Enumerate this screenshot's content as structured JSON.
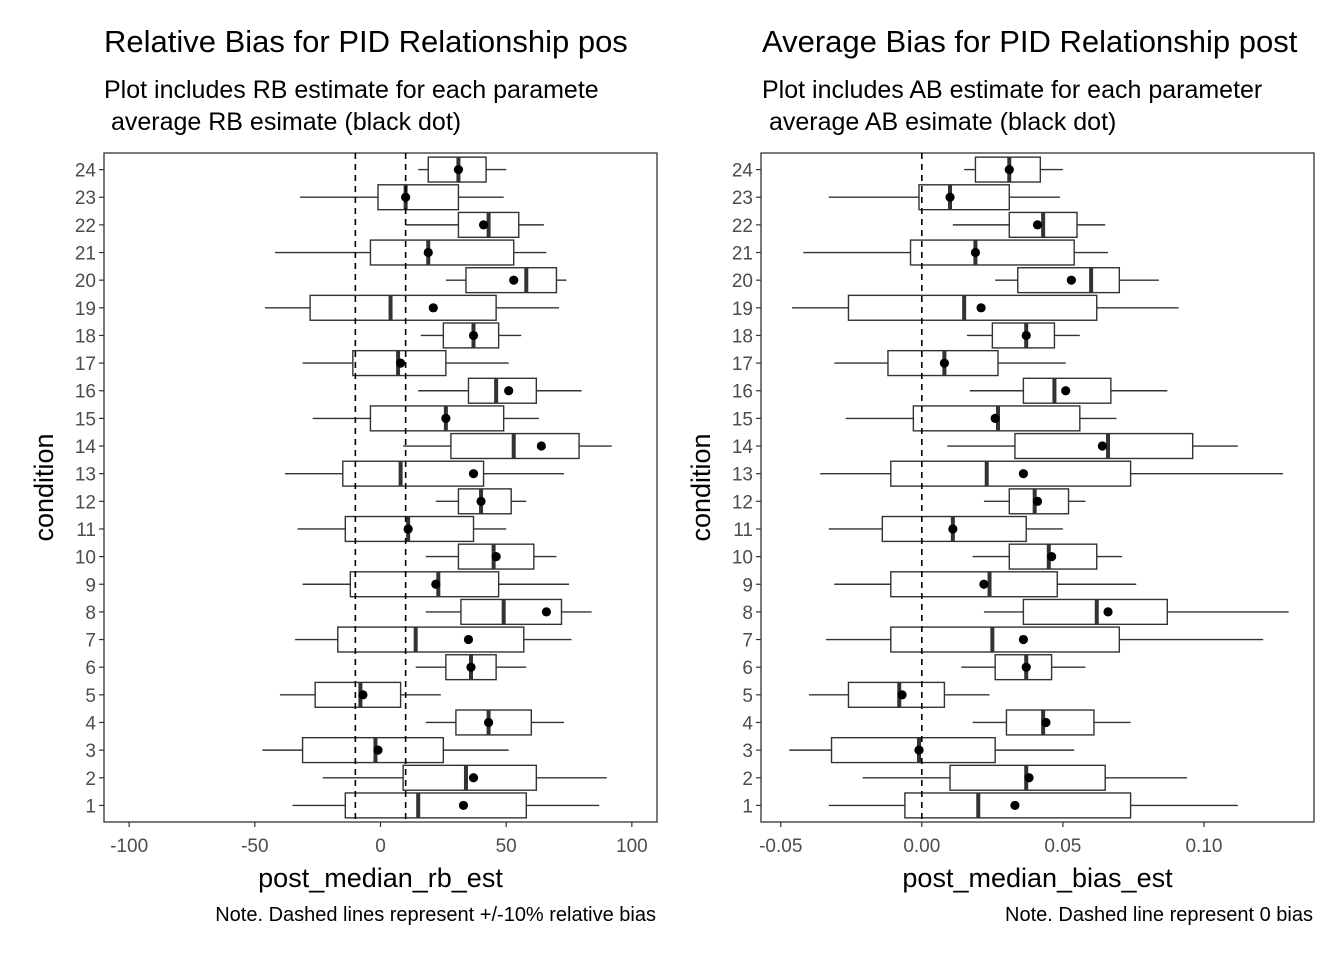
{
  "chart_data": [
    {
      "type": "boxplot",
      "title": "Relative Bias for PID Relationship pos",
      "subtitle": "Plot includes RB estimate for each paramete\n average RB esimate (black dot)",
      "xlabel": "post_median_rb_est",
      "ylabel": "condition",
      "caption": "Note. Dashed lines represent +/-10% relative bias",
      "xlim": [
        -110,
        110
      ],
      "xticks": [
        -100,
        -50,
        0,
        50,
        100
      ],
      "xtick_labels": [
        "-100",
        "-50",
        "0",
        "50",
        "100"
      ],
      "reference_lines": [
        -10,
        10
      ],
      "categories": [
        "1",
        "2",
        "3",
        "4",
        "5",
        "6",
        "7",
        "8",
        "9",
        "10",
        "11",
        "12",
        "13",
        "14",
        "15",
        "16",
        "17",
        "18",
        "19",
        "20",
        "21",
        "22",
        "23",
        "24"
      ],
      "boxes": [
        {
          "condition": "1",
          "whisker_low": -35,
          "q1": -14,
          "median": 15,
          "q3": 58,
          "whisker_high": 87,
          "mean": 33
        },
        {
          "condition": "2",
          "whisker_low": -23,
          "q1": 9,
          "median": 34,
          "q3": 62,
          "whisker_high": 90,
          "mean": 37
        },
        {
          "condition": "3",
          "whisker_low": -47,
          "q1": -31,
          "median": -2,
          "q3": 25,
          "whisker_high": 51,
          "mean": -1
        },
        {
          "condition": "4",
          "whisker_low": 18,
          "q1": 30,
          "median": 43,
          "q3": 60,
          "whisker_high": 73,
          "mean": 43
        },
        {
          "condition": "5",
          "whisker_low": -40,
          "q1": -26,
          "median": -8,
          "q3": 8,
          "whisker_high": 24,
          "mean": -7
        },
        {
          "condition": "6",
          "whisker_low": 14,
          "q1": 26,
          "median": 36,
          "q3": 46,
          "whisker_high": 58,
          "mean": 36
        },
        {
          "condition": "7",
          "whisker_low": -34,
          "q1": -17,
          "median": 14,
          "q3": 57,
          "whisker_high": 76,
          "mean": 35
        },
        {
          "condition": "8",
          "whisker_low": 18,
          "q1": 32,
          "median": 49,
          "q3": 72,
          "whisker_high": 84,
          "mean": 66
        },
        {
          "condition": "9",
          "whisker_low": -31,
          "q1": -12,
          "median": 23,
          "q3": 47,
          "whisker_high": 75,
          "mean": 22
        },
        {
          "condition": "10",
          "whisker_low": 18,
          "q1": 31,
          "median": 45,
          "q3": 61,
          "whisker_high": 70,
          "mean": 46
        },
        {
          "condition": "11",
          "whisker_low": -33,
          "q1": -14,
          "median": 11,
          "q3": 37,
          "whisker_high": 50,
          "mean": 11
        },
        {
          "condition": "12",
          "whisker_low": 22,
          "q1": 31,
          "median": 40,
          "q3": 52,
          "whisker_high": 58,
          "mean": 40
        },
        {
          "condition": "13",
          "whisker_low": -38,
          "q1": -15,
          "median": 8,
          "q3": 41,
          "whisker_high": 73,
          "mean": 37
        },
        {
          "condition": "14",
          "whisker_low": 9,
          "q1": 28,
          "median": 53,
          "q3": 79,
          "whisker_high": 92,
          "mean": 64
        },
        {
          "condition": "15",
          "whisker_low": -27,
          "q1": -4,
          "median": 26,
          "q3": 49,
          "whisker_high": 63,
          "mean": 26
        },
        {
          "condition": "16",
          "whisker_low": 15,
          "q1": 35,
          "median": 46,
          "q3": 62,
          "whisker_high": 80,
          "mean": 51
        },
        {
          "condition": "17",
          "whisker_low": -31,
          "q1": -11,
          "median": 7,
          "q3": 26,
          "whisker_high": 51,
          "mean": 8
        },
        {
          "condition": "18",
          "whisker_low": 16,
          "q1": 25,
          "median": 37,
          "q3": 47,
          "whisker_high": 56,
          "mean": 37
        },
        {
          "condition": "19",
          "whisker_low": -46,
          "q1": -28,
          "median": 4,
          "q3": 46,
          "whisker_high": 71,
          "mean": 21
        },
        {
          "condition": "20",
          "whisker_low": 26,
          "q1": 34,
          "median": 58,
          "q3": 70,
          "whisker_high": 74,
          "mean": 53
        },
        {
          "condition": "21",
          "whisker_low": -42,
          "q1": -4,
          "median": 19,
          "q3": 53,
          "whisker_high": 66,
          "mean": 19
        },
        {
          "condition": "22",
          "whisker_low": 10,
          "q1": 31,
          "median": 43,
          "q3": 55,
          "whisker_high": 65,
          "mean": 41
        },
        {
          "condition": "23",
          "whisker_low": -32,
          "q1": -1,
          "median": 10,
          "q3": 31,
          "whisker_high": 49,
          "mean": 10
        },
        {
          "condition": "24",
          "whisker_low": 15,
          "q1": 19,
          "median": 31,
          "q3": 42,
          "whisker_high": 50,
          "mean": 31
        }
      ]
    },
    {
      "type": "boxplot",
      "title": "Average Bias for PID Relationship post",
      "subtitle": "Plot includes AB estimate for each parameter\n average AB esimate (black dot)",
      "xlabel": "post_median_bias_est",
      "ylabel": "condition",
      "caption": "Note. Dashed line represent 0 bias",
      "xlim": [
        -0.057,
        0.139
      ],
      "xticks": [
        -0.05,
        0.0,
        0.05,
        0.1
      ],
      "xtick_labels": [
        "-0.05",
        "0.00",
        "0.05",
        "0.10"
      ],
      "reference_lines": [
        0
      ],
      "categories": [
        "1",
        "2",
        "3",
        "4",
        "5",
        "6",
        "7",
        "8",
        "9",
        "10",
        "11",
        "12",
        "13",
        "14",
        "15",
        "16",
        "17",
        "18",
        "19",
        "20",
        "21",
        "22",
        "23",
        "24"
      ],
      "boxes": [
        {
          "condition": "1",
          "whisker_low": -0.033,
          "q1": -0.006,
          "median": 0.02,
          "q3": 0.074,
          "whisker_high": 0.112,
          "mean": 0.033
        },
        {
          "condition": "2",
          "whisker_low": -0.021,
          "q1": 0.01,
          "median": 0.037,
          "q3": 0.065,
          "whisker_high": 0.094,
          "mean": 0.038
        },
        {
          "condition": "3",
          "whisker_low": -0.047,
          "q1": -0.032,
          "median": -0.001,
          "q3": 0.026,
          "whisker_high": 0.054,
          "mean": -0.001
        },
        {
          "condition": "4",
          "whisker_low": 0.018,
          "q1": 0.03,
          "median": 0.043,
          "q3": 0.061,
          "whisker_high": 0.074,
          "mean": 0.044
        },
        {
          "condition": "5",
          "whisker_low": -0.04,
          "q1": -0.026,
          "median": -0.008,
          "q3": 0.008,
          "whisker_high": 0.024,
          "mean": -0.007
        },
        {
          "condition": "6",
          "whisker_low": 0.014,
          "q1": 0.026,
          "median": 0.037,
          "q3": 0.046,
          "whisker_high": 0.058,
          "mean": 0.037
        },
        {
          "condition": "7",
          "whisker_low": -0.034,
          "q1": -0.011,
          "median": 0.025,
          "q3": 0.07,
          "whisker_high": 0.121,
          "mean": 0.036
        },
        {
          "condition": "8",
          "whisker_low": 0.022,
          "q1": 0.036,
          "median": 0.062,
          "q3": 0.087,
          "whisker_high": 0.13,
          "mean": 0.066
        },
        {
          "condition": "9",
          "whisker_low": -0.031,
          "q1": -0.011,
          "median": 0.024,
          "q3": 0.048,
          "whisker_high": 0.076,
          "mean": 0.022
        },
        {
          "condition": "10",
          "whisker_low": 0.018,
          "q1": 0.031,
          "median": 0.045,
          "q3": 0.062,
          "whisker_high": 0.071,
          "mean": 0.046
        },
        {
          "condition": "11",
          "whisker_low": -0.033,
          "q1": -0.014,
          "median": 0.011,
          "q3": 0.037,
          "whisker_high": 0.05,
          "mean": 0.011
        },
        {
          "condition": "12",
          "whisker_low": 0.022,
          "q1": 0.031,
          "median": 0.04,
          "q3": 0.052,
          "whisker_high": 0.058,
          "mean": 0.041
        },
        {
          "condition": "13",
          "whisker_low": -0.036,
          "q1": -0.011,
          "median": 0.023,
          "q3": 0.074,
          "whisker_high": 0.128,
          "mean": 0.036
        },
        {
          "condition": "14",
          "whisker_low": 0.009,
          "q1": 0.033,
          "median": 0.066,
          "q3": 0.096,
          "whisker_high": 0.112,
          "mean": 0.064
        },
        {
          "condition": "15",
          "whisker_low": -0.027,
          "q1": -0.003,
          "median": 0.027,
          "q3": 0.056,
          "whisker_high": 0.069,
          "mean": 0.026
        },
        {
          "condition": "16",
          "whisker_low": 0.017,
          "q1": 0.036,
          "median": 0.047,
          "q3": 0.067,
          "whisker_high": 0.087,
          "mean": 0.051
        },
        {
          "condition": "17",
          "whisker_low": -0.031,
          "q1": -0.012,
          "median": 0.008,
          "q3": 0.027,
          "whisker_high": 0.051,
          "mean": 0.008
        },
        {
          "condition": "18",
          "whisker_low": 0.016,
          "q1": 0.025,
          "median": 0.037,
          "q3": 0.047,
          "whisker_high": 0.056,
          "mean": 0.037
        },
        {
          "condition": "19",
          "whisker_low": -0.046,
          "q1": -0.026,
          "median": 0.015,
          "q3": 0.062,
          "whisker_high": 0.091,
          "mean": 0.021
        },
        {
          "condition": "20",
          "whisker_low": 0.026,
          "q1": 0.034,
          "median": 0.06,
          "q3": 0.07,
          "whisker_high": 0.084,
          "mean": 0.053
        },
        {
          "condition": "21",
          "whisker_low": -0.042,
          "q1": -0.004,
          "median": 0.019,
          "q3": 0.054,
          "whisker_high": 0.066,
          "mean": 0.019
        },
        {
          "condition": "22",
          "whisker_low": 0.011,
          "q1": 0.031,
          "median": 0.043,
          "q3": 0.055,
          "whisker_high": 0.065,
          "mean": 0.041
        },
        {
          "condition": "23",
          "whisker_low": -0.033,
          "q1": -0.001,
          "median": 0.01,
          "q3": 0.031,
          "whisker_high": 0.049,
          "mean": 0.01
        },
        {
          "condition": "24",
          "whisker_low": 0.015,
          "q1": 0.019,
          "median": 0.031,
          "q3": 0.042,
          "whisker_high": 0.05,
          "mean": 0.031
        }
      ]
    }
  ]
}
